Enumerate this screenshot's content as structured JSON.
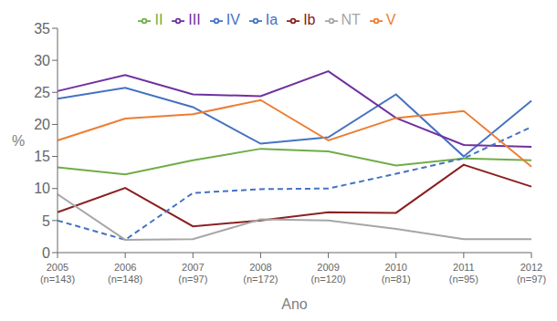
{
  "chart_data": {
    "type": "line",
    "xlabel": "Ano",
    "ylabel": "%",
    "categories": [
      "2005\n(n=143)",
      "2006\n(n=148)",
      "2007\n(n=97)",
      "2008\n(n=172)",
      "2009\n(n=120)",
      "2010\n(n=81)",
      "2011\n(n=95)",
      "2012\n(n=97)"
    ],
    "series": [
      {
        "name": "Ia",
        "color": "#4472c4",
        "line_style": "solid",
        "values": [
          24.0,
          25.7,
          22.7,
          17.0,
          18.0,
          24.7,
          15.0,
          23.7
        ]
      },
      {
        "name": "Ib",
        "color": "#8b2020",
        "line_style": "solid",
        "values": [
          6.3,
          10.1,
          4.1,
          5.0,
          6.3,
          6.2,
          13.7,
          10.3
        ]
      },
      {
        "name": "II",
        "color": "#70ad47",
        "line_style": "solid",
        "values": [
          13.3,
          12.2,
          14.4,
          16.2,
          15.8,
          13.6,
          14.7,
          14.4
        ]
      },
      {
        "name": "III",
        "color": "#7030a0",
        "line_style": "solid",
        "values": [
          25.2,
          27.7,
          24.7,
          24.4,
          28.3,
          21.0,
          16.8,
          16.5
        ]
      },
      {
        "name": "IV",
        "color": "#4472c4",
        "line_style": "dashed",
        "values": [
          5.0,
          2.0,
          9.3,
          9.9,
          10.0,
          12.3,
          14.7,
          19.6
        ]
      },
      {
        "name": "V",
        "color": "#ed7d31",
        "line_style": "solid",
        "values": [
          17.5,
          20.9,
          21.6,
          23.8,
          17.5,
          21.0,
          22.1,
          13.4
        ]
      },
      {
        "name": "NT",
        "color": "#a6a6a6",
        "line_style": "solid",
        "values": [
          9.1,
          2.0,
          2.1,
          5.2,
          5.0,
          3.7,
          2.1,
          2.1
        ]
      }
    ],
    "ylim": [
      0,
      35
    ],
    "yticks": [
      0,
      5,
      10,
      15,
      20,
      25,
      30,
      35
    ],
    "grid": false,
    "legend": "top"
  }
}
